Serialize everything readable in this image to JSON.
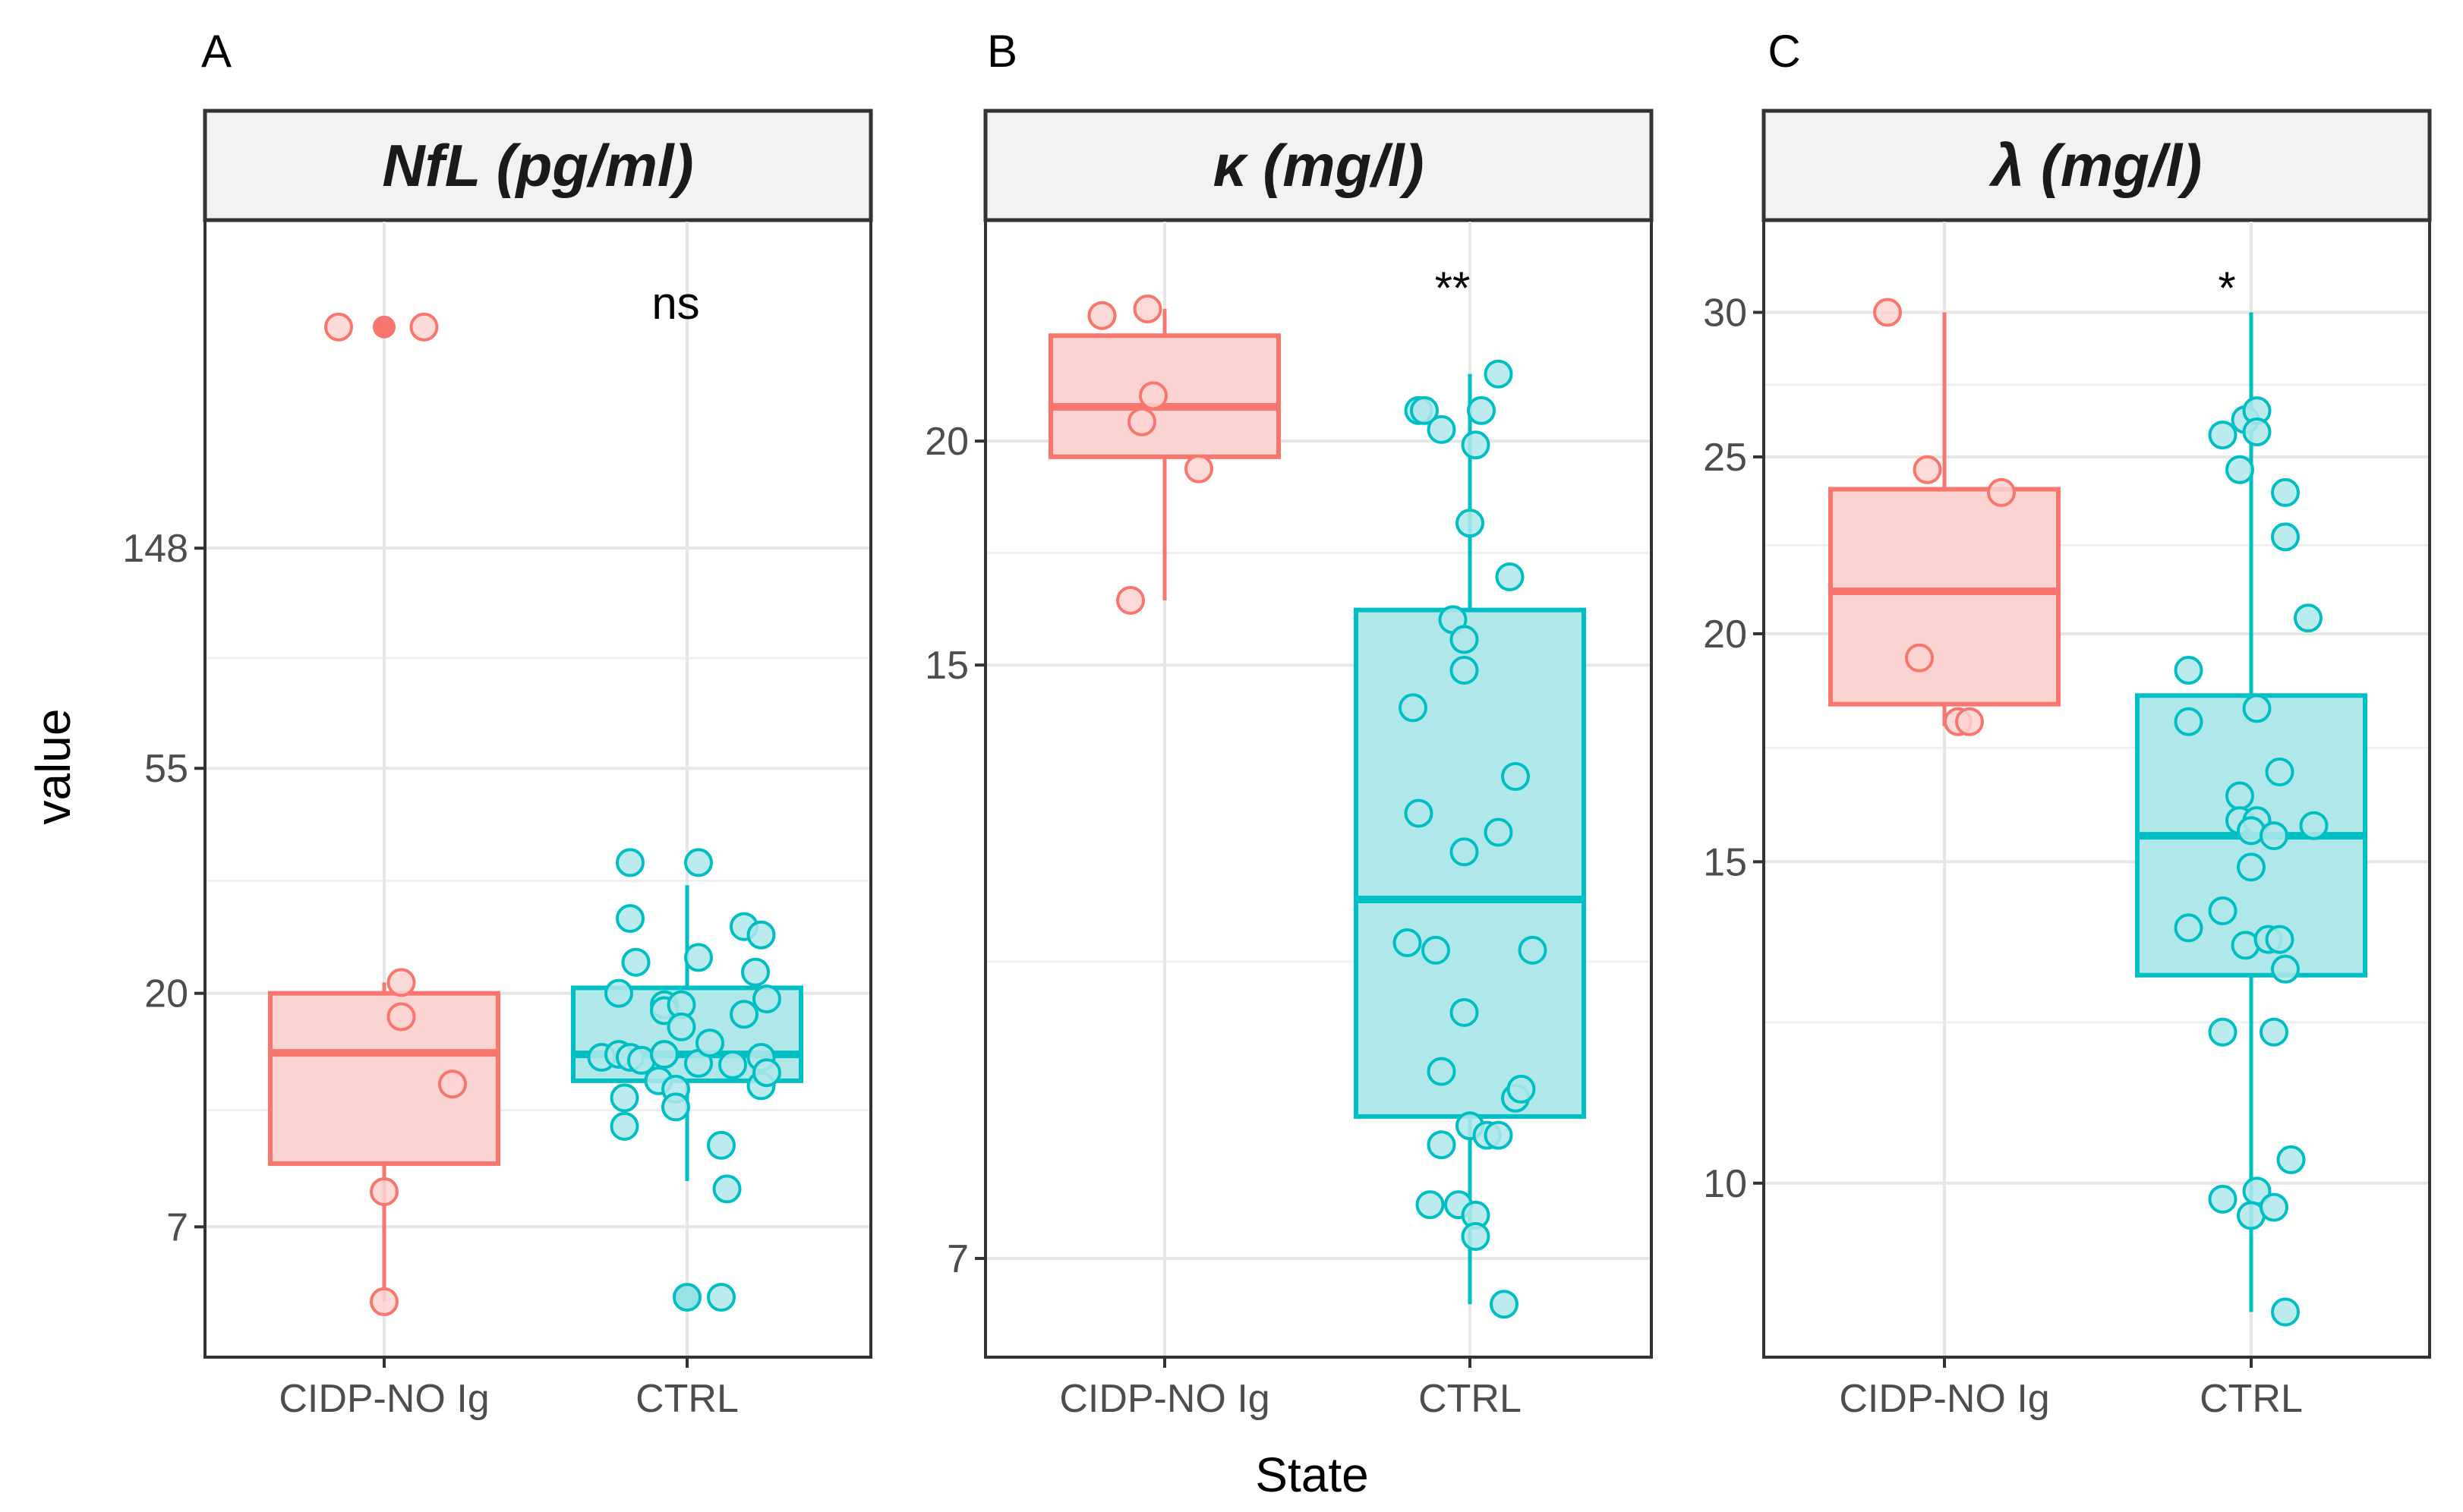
{
  "chart_data": [
    {
      "type": "box",
      "panel_label": "A",
      "title": "NfL (pg/ml)",
      "scale": "log",
      "yticks": [
        {
          "value": 7,
          "label": "7"
        },
        {
          "value": 20,
          "label": "20"
        },
        {
          "value": 55,
          "label": "55"
        },
        {
          "value": 148,
          "label": "148"
        }
      ],
      "ylim": [
        4.2,
        600
      ],
      "categories": [
        "CIDP-NO Ig",
        "CTRL"
      ],
      "significance": "ns",
      "groups": [
        {
          "name": "CIDP-NO Ig",
          "color": "#f8766d",
          "fill": "#fbd4d1",
          "box": {
            "q1": 9.3,
            "median": 15.3,
            "q3": 20.0,
            "whisker_low": 5.0,
            "whisker_high": 21.0
          },
          "outliers": [
            400
          ],
          "points": [
            [
              -0.4,
              400
            ],
            [
              0.35,
              400
            ],
            [
              0.15,
              21.0
            ],
            [
              0.15,
              18.0
            ],
            [
              0.6,
              13.3
            ],
            [
              0.0,
              8.2
            ],
            [
              0.0,
              5.0
            ]
          ]
        },
        {
          "name": "CTRL",
          "color": "#00bfc4",
          "fill": "#b0e8ea",
          "box": {
            "q1": 13.5,
            "median": 15.2,
            "q3": 20.5,
            "whisker_low": 8.6,
            "whisker_high": 32.5
          },
          "outliers": [
            5.1
          ],
          "points": [
            [
              -0.5,
              36
            ],
            [
              -0.5,
              28
            ],
            [
              -0.45,
              23
            ],
            [
              -0.6,
              20
            ],
            [
              -0.2,
              19
            ],
            [
              -0.2,
              18.5
            ],
            [
              -0.05,
              19
            ],
            [
              -0.05,
              17.2
            ],
            [
              -0.75,
              15
            ],
            [
              -0.6,
              15.2
            ],
            [
              -0.5,
              15.0
            ],
            [
              -0.4,
              14.8
            ],
            [
              -0.2,
              15.2
            ],
            [
              0.1,
              14.6
            ],
            [
              0.2,
              16
            ],
            [
              0.4,
              14.5
            ],
            [
              0.5,
              18.2
            ],
            [
              0.65,
              15.0
            ],
            [
              0.7,
              19.5
            ],
            [
              -0.25,
              13.5
            ],
            [
              -0.1,
              13.0
            ],
            [
              -0.55,
              12.5
            ],
            [
              -0.1,
              12.0
            ],
            [
              0.65,
              13.2
            ],
            [
              0.7,
              14.0
            ],
            [
              0.6,
              22.0
            ],
            [
              0.5,
              27.0
            ],
            [
              0.65,
              26.0
            ],
            [
              0.1,
              36.0
            ],
            [
              0.1,
              23.5
            ],
            [
              -0.55,
              11.0
            ],
            [
              0.3,
              10.1
            ],
            [
              0.35,
              8.3
            ],
            [
              0.3,
              5.1
            ],
            [
              0.0,
              5.1
            ]
          ]
        }
      ]
    },
    {
      "type": "box",
      "panel_label": "B",
      "title": "κ (mg/l)",
      "scale": "log",
      "yticks": [
        {
          "value": 7,
          "label": "7"
        },
        {
          "value": 15,
          "label": "15"
        },
        {
          "value": 20,
          "label": "20"
        }
      ],
      "ylim": [
        6.3,
        26
      ],
      "categories": [
        "CIDP-NO Ig",
        "CTRL"
      ],
      "significance": "**",
      "groups": [
        {
          "name": "CIDP-NO Ig",
          "color": "#f8766d",
          "fill": "#fbd4d1",
          "box": {
            "q1": 19.6,
            "median": 20.9,
            "q3": 22.9,
            "whisker_low": 16.3,
            "whisker_high": 23.7
          },
          "outliers": [],
          "points": [
            [
              -0.55,
              23.5
            ],
            [
              -0.15,
              23.7
            ],
            [
              -0.2,
              20.5
            ],
            [
              -0.1,
              21.2
            ],
            [
              0.3,
              19.3
            ],
            [
              -0.3,
              16.3
            ]
          ]
        },
        {
          "name": "CTRL",
          "color": "#00bfc4",
          "fill": "#b0e8ea",
          "box": {
            "q1": 8.4,
            "median": 11.1,
            "q3": 16.1,
            "whisker_low": 6.6,
            "whisker_high": 21.8
          },
          "outliers": [],
          "points": [
            [
              -0.45,
              20.8
            ],
            [
              -0.4,
              20.8
            ],
            [
              -0.25,
              20.3
            ],
            [
              0.05,
              19.9
            ],
            [
              0.1,
              20.8
            ],
            [
              0.25,
              21.8
            ],
            [
              0.0,
              18.0
            ],
            [
              0.35,
              16.8
            ],
            [
              -0.15,
              15.9
            ],
            [
              -0.05,
              15.5
            ],
            [
              -0.05,
              14.9
            ],
            [
              -0.5,
              14.2
            ],
            [
              0.4,
              13.0
            ],
            [
              -0.45,
              12.4
            ],
            [
              0.25,
              12.1
            ],
            [
              -0.05,
              11.8
            ],
            [
              -0.55,
              10.5
            ],
            [
              -0.3,
              10.4
            ],
            [
              0.55,
              10.4
            ],
            [
              -0.05,
              9.6
            ],
            [
              -0.25,
              8.9
            ],
            [
              0.4,
              8.6
            ],
            [
              0.45,
              8.7
            ],
            [
              0.0,
              8.3
            ],
            [
              0.15,
              8.2
            ],
            [
              0.25,
              8.2
            ],
            [
              -0.25,
              8.1
            ],
            [
              -0.35,
              7.5
            ],
            [
              -0.1,
              7.5
            ],
            [
              0.05,
              7.4
            ],
            [
              0.05,
              7.2
            ],
            [
              0.3,
              6.6
            ]
          ]
        }
      ]
    },
    {
      "type": "box",
      "panel_label": "C",
      "title": "λ (mg/l)",
      "scale": "log",
      "yticks": [
        {
          "value": 10,
          "label": "10"
        },
        {
          "value": 15,
          "label": "15"
        },
        {
          "value": 20,
          "label": "20"
        },
        {
          "value": 25,
          "label": "25"
        },
        {
          "value": 30,
          "label": "30"
        }
      ],
      "ylim": [
        8.2,
        33
      ],
      "categories": [
        "CIDP-NO Ig",
        "CTRL"
      ],
      "significance": "*",
      "groups": [
        {
          "name": "CIDP-NO Ig",
          "color": "#f8766d",
          "fill": "#fbd4d1",
          "box": {
            "q1": 18.3,
            "median": 21.1,
            "q3": 24.0,
            "whisker_low": 17.8,
            "whisker_high": 30.0
          },
          "outliers": [],
          "points": [
            [
              -0.5,
              30.0
            ],
            [
              -0.15,
              24.6
            ],
            [
              0.5,
              23.9
            ],
            [
              -0.22,
              19.4
            ],
            [
              0.12,
              17.9
            ],
            [
              0.22,
              17.9
            ]
          ]
        },
        {
          "name": "CTRL",
          "color": "#00bfc4",
          "fill": "#b0e8ea",
          "box": {
            "q1": 13.0,
            "median": 15.5,
            "q3": 18.5,
            "whisker_low": 8.5,
            "whisker_high": 30.0
          },
          "outliers": [],
          "points": [
            [
              -0.25,
              25.7
            ],
            [
              -0.05,
              26.2
            ],
            [
              0.05,
              26.5
            ],
            [
              0.05,
              25.8
            ],
            [
              -0.1,
              24.6
            ],
            [
              0.3,
              23.9
            ],
            [
              0.3,
              22.6
            ],
            [
              0.5,
              20.4
            ],
            [
              -0.55,
              19.1
            ],
            [
              -0.55,
              17.9
            ],
            [
              0.05,
              18.2
            ],
            [
              0.25,
              16.8
            ],
            [
              -0.1,
              16.3
            ],
            [
              -0.1,
              15.8
            ],
            [
              0.05,
              15.8
            ],
            [
              0.0,
              15.6
            ],
            [
              0.2,
              15.5
            ],
            [
              0.55,
              15.7
            ],
            [
              0.0,
              14.9
            ],
            [
              -0.25,
              14.1
            ],
            [
              -0.55,
              13.8
            ],
            [
              -0.05,
              13.5
            ],
            [
              0.15,
              13.6
            ],
            [
              0.25,
              13.6
            ],
            [
              0.3,
              13.1
            ],
            [
              -0.25,
              12.1
            ],
            [
              0.2,
              12.1
            ],
            [
              0.35,
              10.3
            ],
            [
              0.05,
              9.9
            ],
            [
              0.0,
              9.6
            ],
            [
              -0.25,
              9.8
            ],
            [
              0.2,
              9.7
            ],
            [
              0.3,
              8.5
            ]
          ]
        }
      ]
    }
  ],
  "axes": {
    "ylabel": "value",
    "xlabel": "State"
  }
}
